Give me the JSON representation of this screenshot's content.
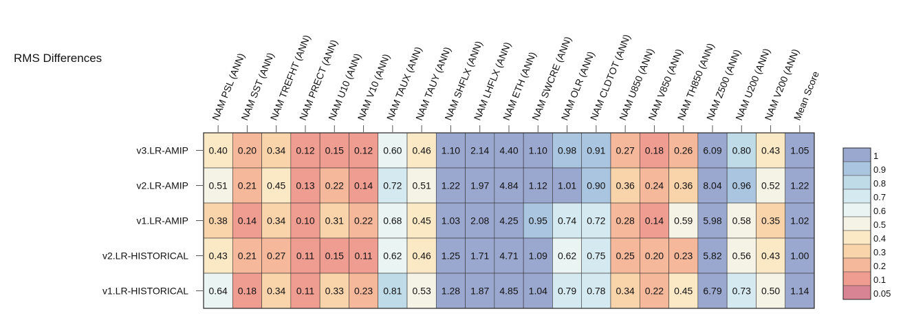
{
  "chart_data": {
    "type": "heatmap",
    "title": "RMS Differences",
    "columns": [
      "NAM PSL (ANN)",
      "NAM SST (ANN)",
      "NAM TREFHT (ANN)",
      "NAM PRECT (ANN)",
      "NAM U10 (ANN)",
      "NAM V10 (ANN)",
      "NAM TAUX (ANN)",
      "NAM TAUY (ANN)",
      "NAM SHFLX (ANN)",
      "NAM LHFLX (ANN)",
      "NAM ETH (ANN)",
      "NAM SWCRE (ANN)",
      "NAM OLR (ANN)",
      "NAM CLDTOT (ANN)",
      "NAM U850 (ANN)",
      "NAM V850 (ANN)",
      "NAM TH850 (ANN)",
      "NAM Z500 (ANN)",
      "NAM U200 (ANN)",
      "NAM V200 (ANN)",
      "Mean Score"
    ],
    "rows": [
      "v3.LR-AMIP",
      "v2.LR-AMIP",
      "v1.LR-AMIP",
      "v2.LR-HISTORICAL",
      "v1.LR-HISTORICAL"
    ],
    "values": [
      [
        "0.40",
        "0.20",
        "0.34",
        "0.12",
        "0.15",
        "0.12",
        "0.60",
        "0.46",
        "1.10",
        "2.14",
        "4.40",
        "1.10",
        "0.98",
        "0.91",
        "0.27",
        "0.18",
        "0.26",
        "6.09",
        "0.80",
        "0.43",
        "1.05"
      ],
      [
        "0.51",
        "0.21",
        "0.45",
        "0.13",
        "0.22",
        "0.14",
        "0.72",
        "0.51",
        "1.22",
        "1.97",
        "4.84",
        "1.12",
        "1.01",
        "0.90",
        "0.36",
        "0.24",
        "0.36",
        "8.04",
        "0.96",
        "0.52",
        "1.22"
      ],
      [
        "0.38",
        "0.14",
        "0.34",
        "0.10",
        "0.31",
        "0.22",
        "0.68",
        "0.45",
        "1.03",
        "2.08",
        "4.25",
        "0.95",
        "0.74",
        "0.72",
        "0.28",
        "0.14",
        "0.59",
        "5.98",
        "0.58",
        "0.35",
        "1.02"
      ],
      [
        "0.43",
        "0.21",
        "0.27",
        "0.11",
        "0.15",
        "0.11",
        "0.62",
        "0.46",
        "1.25",
        "1.71",
        "4.71",
        "1.09",
        "0.62",
        "0.75",
        "0.25",
        "0.20",
        "0.23",
        "5.82",
        "0.56",
        "0.43",
        "1.00"
      ],
      [
        "0.64",
        "0.18",
        "0.34",
        "0.11",
        "0.33",
        "0.23",
        "0.81",
        "0.53",
        "1.28",
        "1.87",
        "4.85",
        "1.04",
        "0.79",
        "0.78",
        "0.34",
        "0.22",
        "0.45",
        "6.79",
        "0.73",
        "0.50",
        "1.14"
      ]
    ],
    "colorbar": {
      "ticks": [
        "1",
        "0.9",
        "0.8",
        "0.7",
        "0.6",
        "0.5",
        "0.4",
        "0.3",
        "0.2",
        "0.1",
        "0.05"
      ],
      "colors": [
        "#9aa8cf",
        "#aac5df",
        "#bfdbe8",
        "#d5eaf0",
        "#eaf4f3",
        "#f5f3e6",
        "#fbe9c6",
        "#f9d3a9",
        "#f5b89a",
        "#ef9d90",
        "#d98494"
      ]
    }
  }
}
